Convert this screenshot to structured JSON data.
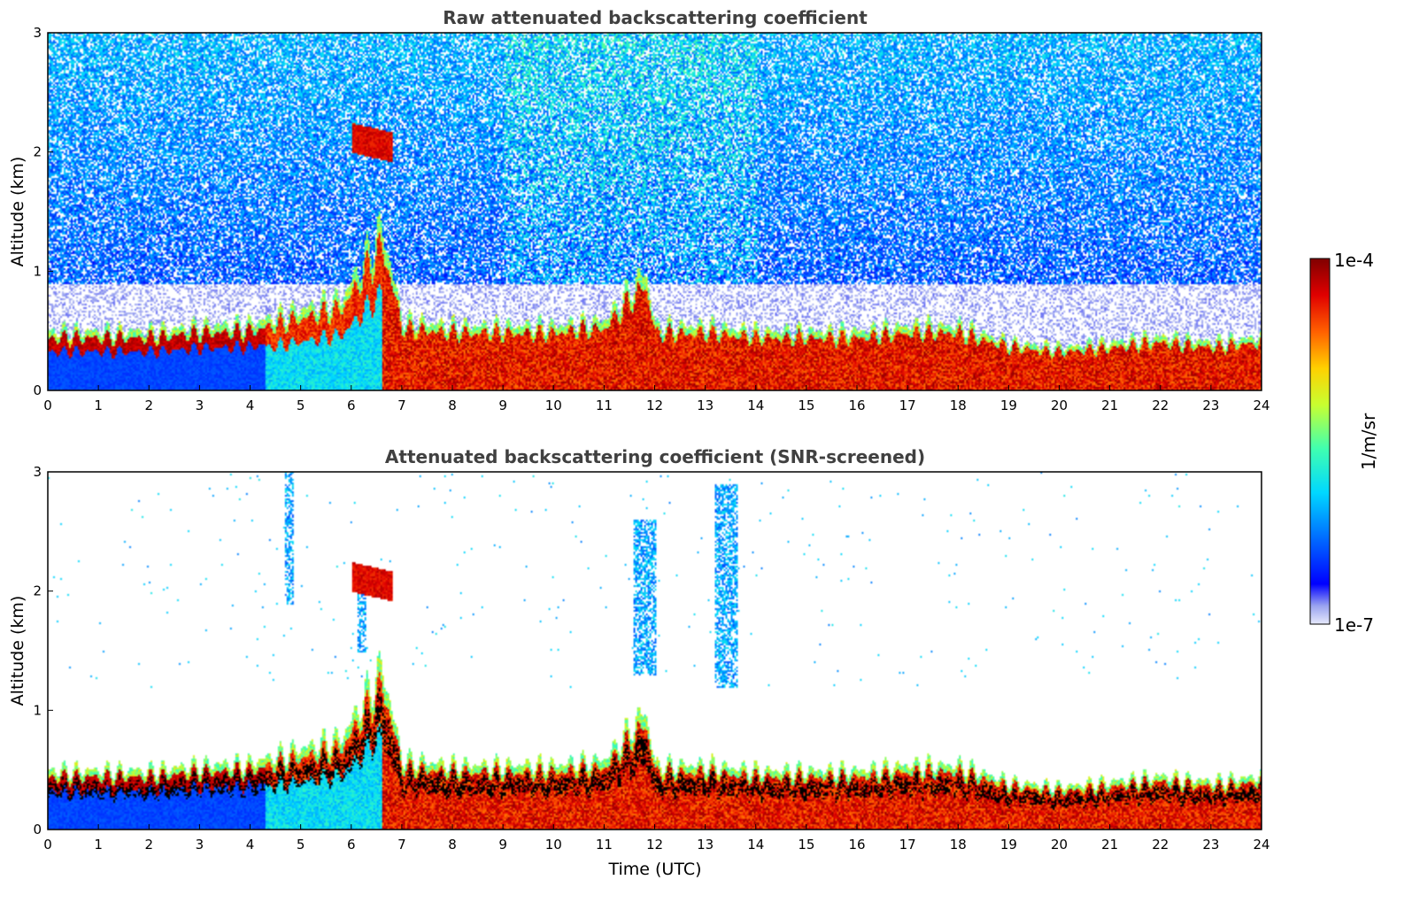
{
  "chart_data": [
    {
      "type": "heatmap",
      "title": "Raw attenuated backscattering coefficient",
      "xlabel": "",
      "ylabel": "Altitude (km)",
      "xlim": [
        0,
        24
      ],
      "ylim": [
        0,
        3
      ],
      "x_ticks": [
        "0",
        "1",
        "2",
        "3",
        "4",
        "5",
        "6",
        "7",
        "8",
        "9",
        "10",
        "11",
        "12",
        "13",
        "14",
        "15",
        "16",
        "17",
        "18",
        "19",
        "20",
        "21",
        "22",
        "23",
        "24"
      ],
      "y_ticks": [
        "0",
        "1",
        "2",
        "3"
      ],
      "boundary_layer_top_km": [
        [
          0,
          0.55
        ],
        [
          1,
          0.55
        ],
        [
          2,
          0.55
        ],
        [
          3,
          0.6
        ],
        [
          4,
          0.62
        ],
        [
          5,
          0.75
        ],
        [
          5.8,
          0.85
        ],
        [
          6.6,
          1.5
        ],
        [
          7,
          0.65
        ],
        [
          8,
          0.6
        ],
        [
          9,
          0.6
        ],
        [
          10,
          0.6
        ],
        [
          11,
          0.65
        ],
        [
          11.8,
          1.1
        ],
        [
          12,
          0.6
        ],
        [
          13,
          0.6
        ],
        [
          14,
          0.55
        ],
        [
          15,
          0.55
        ],
        [
          16,
          0.55
        ],
        [
          17,
          0.6
        ],
        [
          18,
          0.6
        ],
        [
          19,
          0.45
        ],
        [
          20,
          0.4
        ],
        [
          21,
          0.45
        ],
        [
          22,
          0.5
        ],
        [
          23,
          0.45
        ],
        [
          24,
          0.5
        ]
      ],
      "elevated_layer": {
        "x": [
          6,
          6.8
        ],
        "altitude_km": [
          2.0,
          2.25
        ]
      },
      "noise_above_km": 0.9
    },
    {
      "type": "heatmap",
      "title": "Attenuated backscattering coefficient (SNR-screened)",
      "xlabel": "Time (UTC)",
      "ylabel": "Altitude (km)",
      "xlim": [
        0,
        24
      ],
      "ylim": [
        0,
        3
      ],
      "x_ticks": [
        "0",
        "1",
        "2",
        "3",
        "4",
        "5",
        "6",
        "7",
        "8",
        "9",
        "10",
        "11",
        "12",
        "13",
        "14",
        "15",
        "16",
        "17",
        "18",
        "19",
        "20",
        "21",
        "22",
        "23",
        "24"
      ],
      "y_ticks": [
        "0",
        "1",
        "2",
        "3"
      ],
      "screened_plumes": [
        {
          "x": 4.75,
          "altitude_km": [
            1.9,
            3.0
          ]
        },
        {
          "x": 6.2,
          "altitude_km": [
            1.5,
            2.0
          ]
        },
        {
          "x": 11.8,
          "altitude_km": [
            1.3,
            2.6
          ]
        },
        {
          "x": 13.4,
          "altitude_km": [
            1.2,
            2.9
          ]
        }
      ]
    }
  ],
  "colorbar": {
    "label": "1/m/sr",
    "max_label": "1e-4",
    "min_label": "1e-7",
    "scale": "log",
    "colormap": "jet"
  }
}
